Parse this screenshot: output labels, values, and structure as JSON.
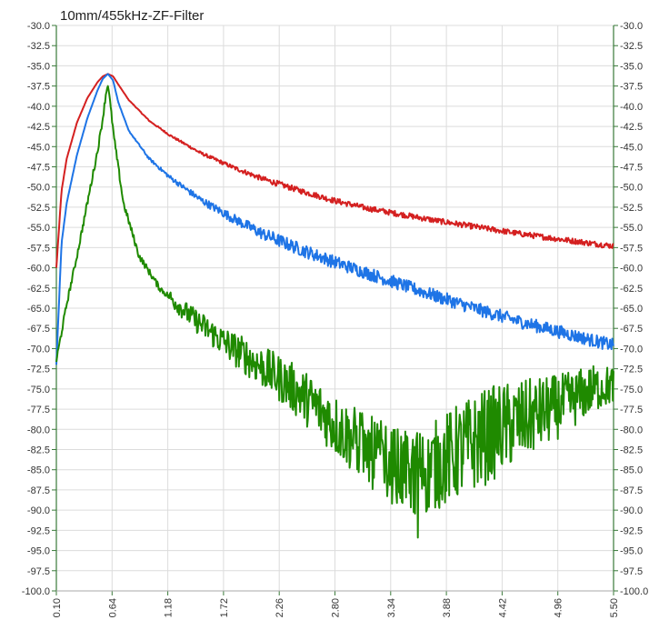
{
  "chart_data": {
    "type": "line",
    "title": "10mm/455kHz-ZF-Filter",
    "xlabel": "",
    "ylabel": "",
    "xlim": [
      0.1,
      5.5
    ],
    "ylim": [
      -100.0,
      -30.0
    ],
    "x_ticks": [
      "0.10",
      "0.64",
      "1.18",
      "1.72",
      "2.26",
      "2.80",
      "3.34",
      "3.88",
      "4.42",
      "4.96",
      "5.50"
    ],
    "y_ticks": [
      "-30.0",
      "-32.5",
      "-35.0",
      "-37.5",
      "-40.0",
      "-42.5",
      "-45.0",
      "-47.5",
      "-50.0",
      "-52.5",
      "-55.0",
      "-57.5",
      "-60.0",
      "-62.5",
      "-65.0",
      "-67.5",
      "-70.0",
      "-72.5",
      "-75.0",
      "-77.5",
      "-80.0",
      "-82.5",
      "-85.0",
      "-87.5",
      "-90.0",
      "-92.5",
      "-95.0",
      "-97.5",
      "-100.0"
    ],
    "grid": true,
    "series": [
      {
        "color": "#d42020",
        "x": [
          0.1,
          0.15,
          0.2,
          0.3,
          0.4,
          0.5,
          0.55,
          0.6,
          0.65,
          0.7,
          0.8,
          1.0,
          1.2,
          1.5,
          1.8,
          2.1,
          2.5,
          2.8,
          3.1,
          3.4,
          3.8,
          4.2,
          4.6,
          5.0,
          5.3,
          5.5
        ],
        "y": [
          -60.0,
          -50.5,
          -46.5,
          -42.0,
          -39.0,
          -37.0,
          -36.3,
          -36.0,
          -36.3,
          -37.3,
          -39.2,
          -41.8,
          -43.6,
          -45.8,
          -47.5,
          -49.0,
          -50.6,
          -51.7,
          -52.6,
          -53.3,
          -54.2,
          -55.0,
          -55.8,
          -56.5,
          -57.0,
          -57.3
        ]
      },
      {
        "color": "#1e74e6",
        "x": [
          0.1,
          0.15,
          0.2,
          0.3,
          0.4,
          0.5,
          0.55,
          0.6,
          0.65,
          0.7,
          0.8,
          1.0,
          1.2,
          1.5,
          1.8,
          2.1,
          2.5,
          2.8,
          3.1,
          3.4,
          3.8,
          4.2,
          4.6,
          5.0,
          5.3,
          5.5
        ],
        "y": [
          -72.0,
          -57.0,
          -52.0,
          -46.0,
          -41.5,
          -38.0,
          -36.6,
          -36.0,
          -36.8,
          -39.5,
          -43.0,
          -46.5,
          -48.8,
          -51.6,
          -53.8,
          -55.8,
          -57.9,
          -59.3,
          -60.6,
          -61.9,
          -63.6,
          -65.2,
          -66.7,
          -68.0,
          -69.0,
          -69.6
        ]
      },
      {
        "color": "#1f8a00",
        "x": [
          0.1,
          0.15,
          0.2,
          0.3,
          0.4,
          0.5,
          0.55,
          0.58,
          0.6,
          0.62,
          0.66,
          0.75,
          0.9,
          1.1,
          1.4,
          1.7,
          2.0,
          2.3,
          2.6,
          2.85,
          3.1,
          3.3,
          3.5,
          3.7,
          3.9,
          4.1,
          4.4,
          4.7,
          5.0,
          5.3,
          5.5
        ],
        "y": [
          -71.5,
          -68.0,
          -64.5,
          -58.5,
          -52.0,
          -45.5,
          -41.5,
          -38.5,
          -37.2,
          -39.5,
          -44.0,
          -52.0,
          -58.5,
          -62.5,
          -66.0,
          -69.0,
          -71.5,
          -74.0,
          -77.0,
          -80.0,
          -82.5,
          -84.0,
          -85.5,
          -85.0,
          -83.5,
          -82.0,
          -80.0,
          -78.5,
          -77.0,
          -75.0,
          -74.5
        ]
      }
    ]
  }
}
